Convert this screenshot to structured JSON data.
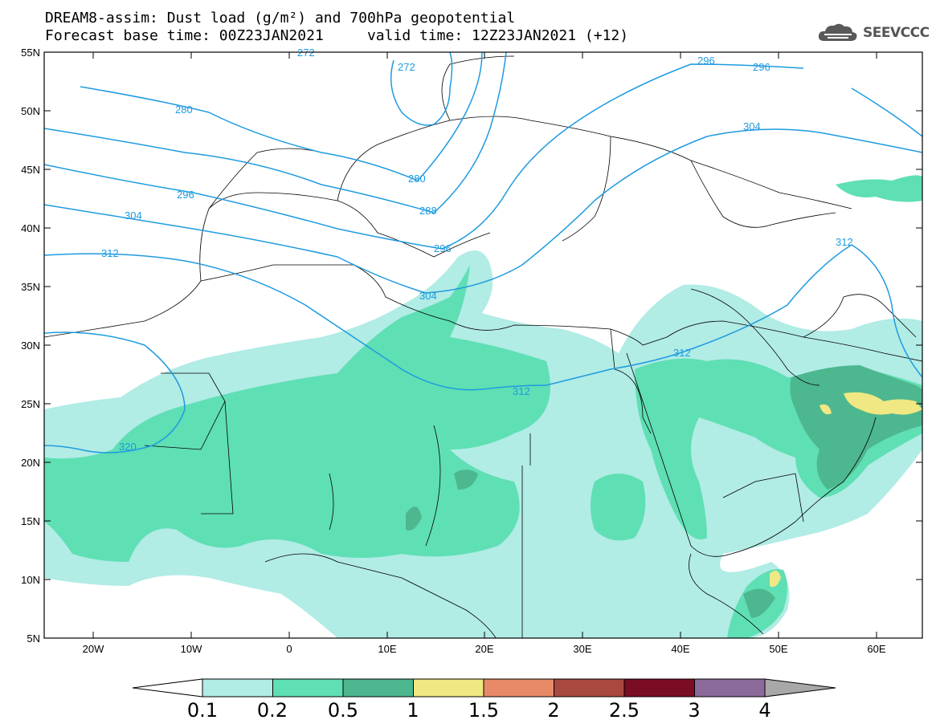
{
  "title": {
    "line1": "DREAM8-assim: Dust load (g/m²) and 700hPa geopotential",
    "line2": "Forecast base time: 00Z23JAN2021     valid time: 12Z23JAN2021 (+12)"
  },
  "logo": {
    "text": "SEEVCCC"
  },
  "map": {
    "lon_ticks": [
      "20W",
      "10W",
      "0",
      "10E",
      "20E",
      "30E",
      "40E",
      "50E",
      "60E"
    ],
    "lat_ticks": [
      "55N",
      "50N",
      "45N",
      "40N",
      "35N",
      "30N",
      "25N",
      "20N",
      "15N",
      "10N",
      "5N"
    ],
    "contour_labels": [
      "272",
      "272",
      "280",
      "280",
      "288",
      "296",
      "296",
      "296",
      "296",
      "304",
      "304",
      "304",
      "312",
      "312",
      "312",
      "312",
      "320"
    ]
  },
  "colorbar": {
    "labels": [
      "0.1",
      "0.2",
      "0.5",
      "1",
      "1.5",
      "2",
      "2.5",
      "3",
      "4"
    ],
    "colors": [
      "#d8f5f5",
      "#b1ece5",
      "#5fdfb4",
      "#4db78f",
      "#f0e882",
      "#e88a68",
      "#a84840",
      "#7a0c24",
      "#8c6a9c",
      "#a8a8a8"
    ]
  },
  "colors": {
    "contour": "#1e9be0",
    "border": "#000000"
  }
}
